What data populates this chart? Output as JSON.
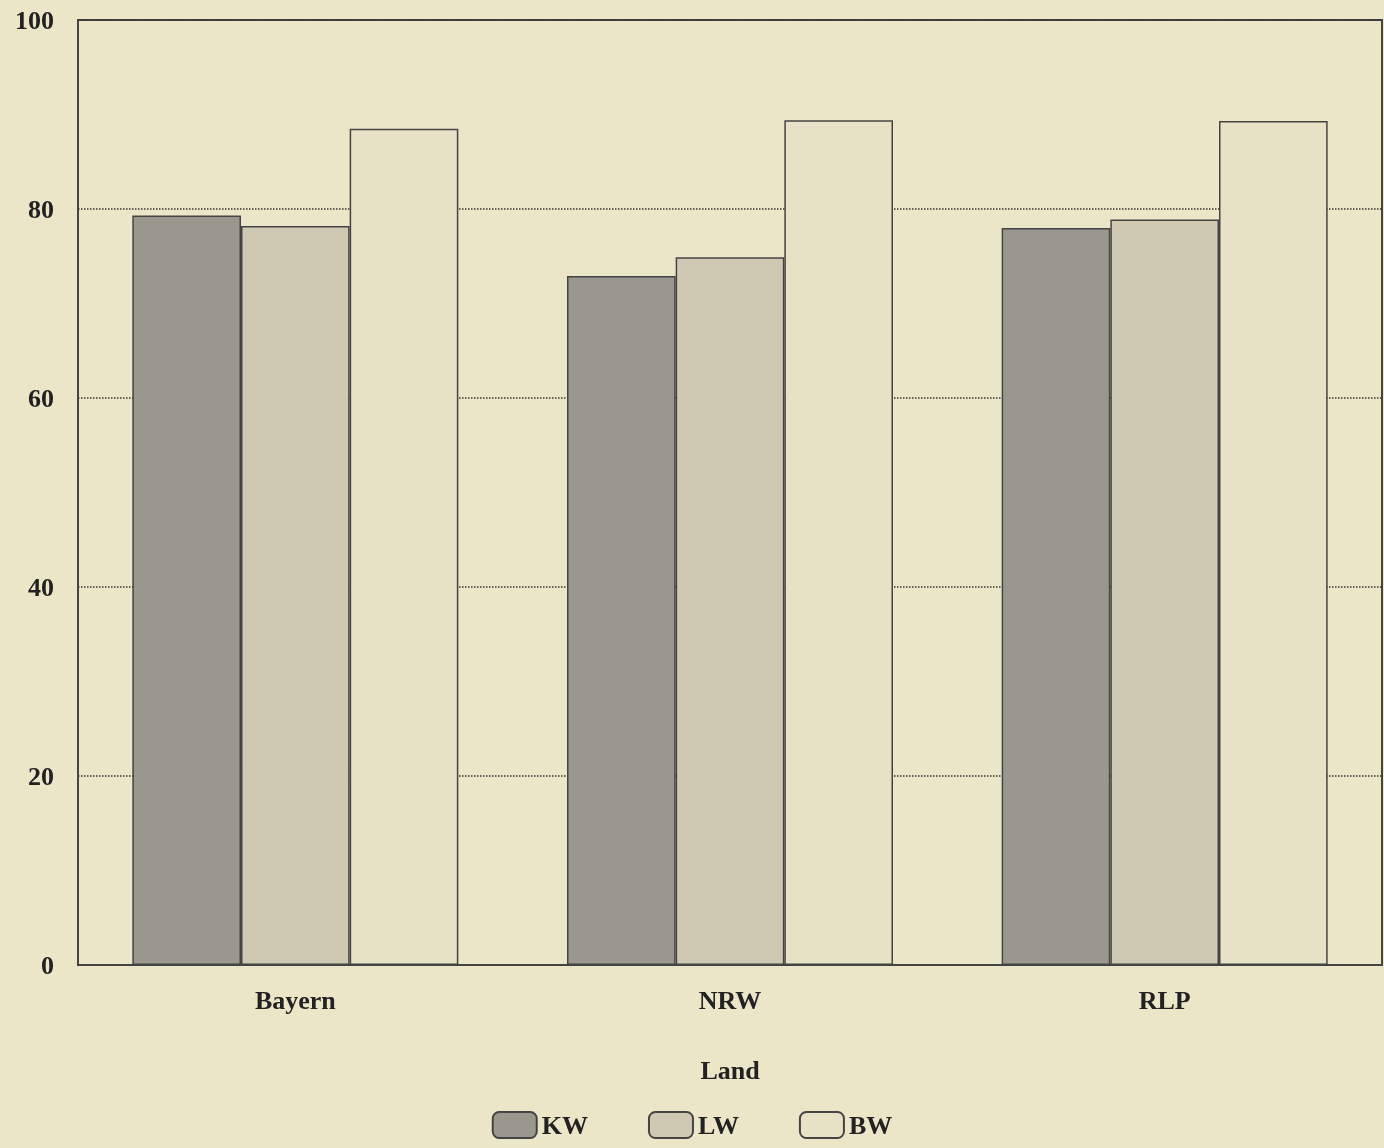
{
  "chart_data": {
    "type": "bar",
    "xlabel": "Land",
    "categories": [
      "Bayern",
      "NRW",
      "RLP"
    ],
    "series": [
      {
        "name": "KW",
        "color": "#9a978e",
        "values": [
          79.3,
          72.9,
          78.0
        ]
      },
      {
        "name": "LW",
        "color": "#cfc9b4",
        "values": [
          78.2,
          74.9,
          78.9
        ]
      },
      {
        "name": "BW",
        "color": "#e7e1c6",
        "values": [
          88.5,
          89.4,
          89.3
        ]
      }
    ],
    "ylim": [
      0,
      100
    ],
    "yticks": [
      0,
      20,
      40,
      60,
      80,
      100
    ],
    "grid": "y",
    "line_style": "dotted",
    "legend": "bottom"
  }
}
